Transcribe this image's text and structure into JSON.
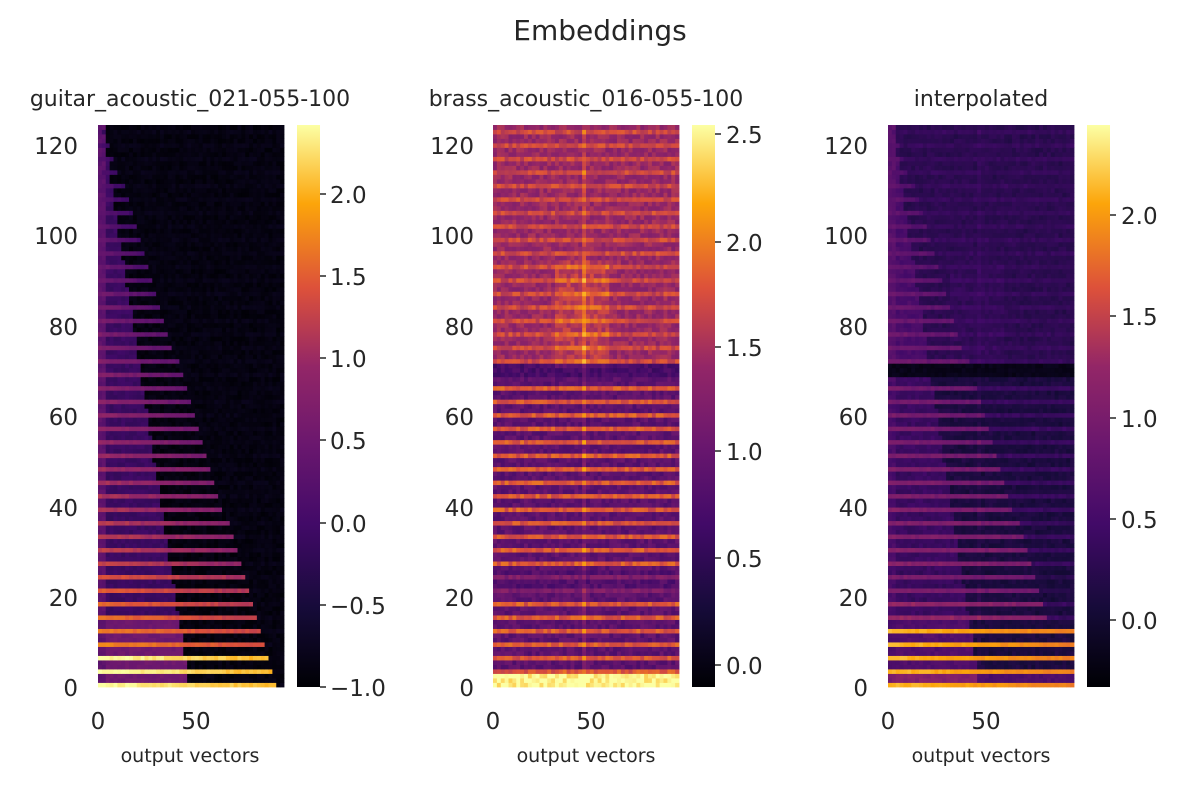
{
  "chart_data": {
    "type": "heatmap",
    "title": "Embeddings",
    "colormap": "inferno",
    "panels": [
      {
        "title": "guitar_acoustic_021-055-100",
        "xlabel": "output vectors",
        "ylabel": "",
        "x_range": [
          0,
          95
        ],
        "y_range": [
          0,
          125
        ],
        "x_ticks": [
          "0",
          "50"
        ],
        "y_ticks": [
          "0",
          "20",
          "40",
          "60",
          "80",
          "100",
          "120"
        ],
        "color_range": [
          -1.0,
          2.4
        ],
        "colorbar_ticks": [
          "−1.0",
          "−0.5",
          "0.0",
          "0.5",
          "1.0",
          "1.5",
          "2.0"
        ],
        "pattern": "guitar"
      },
      {
        "title": "brass_acoustic_016-055-100",
        "xlabel": "output vectors",
        "ylabel": "",
        "x_range": [
          0,
          95
        ],
        "y_range": [
          0,
          125
        ],
        "x_ticks": [
          "0",
          "50"
        ],
        "y_ticks": [
          "0",
          "20",
          "40",
          "60",
          "80",
          "100",
          "120"
        ],
        "color_range": [
          -0.12,
          2.55
        ],
        "colorbar_ticks": [
          "0.0",
          "0.5",
          "1.0",
          "1.5",
          "2.0",
          "2.5"
        ],
        "pattern": "brass"
      },
      {
        "title": "interpolated",
        "xlabel": "output vectors",
        "ylabel": "",
        "x_range": [
          0,
          95
        ],
        "y_range": [
          0,
          125
        ],
        "x_ticks": [
          "0",
          "50"
        ],
        "y_ticks": [
          "0",
          "20",
          "40",
          "60",
          "80",
          "100",
          "120"
        ],
        "color_range": [
          -0.35,
          2.4
        ],
        "colorbar_ticks": [
          "0.0",
          "0.5",
          "1.0",
          "1.5",
          "2.0"
        ],
        "pattern": "interpolated"
      }
    ]
  }
}
